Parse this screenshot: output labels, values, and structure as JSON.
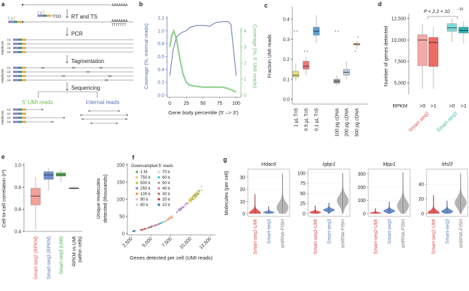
{
  "panel_labels": {
    "a": "a",
    "b": "b",
    "c": "c",
    "d": "d",
    "e": "e",
    "f": "f",
    "g": "g"
  },
  "schematic": {
    "polyA": "AAAAAAA",
    "polyT": "TTTTTTT",
    "tso_parts": [
      "Tn5",
      "Nxt",
      "UMI"
    ],
    "tso_label": "TSO",
    "steps": [
      "RT and TS",
      "PCR",
      "Tagmentation",
      "Sequencing"
    ],
    "amplicons_label": "Amplicons",
    "amplicon_ids": [
      "A1",
      "A2",
      "A3",
      "A4"
    ],
    "umi_reads": "5′ UMI reads",
    "internal_reads": "Internal reads",
    "colors": {
      "tn5": "#8b7bb8",
      "nxt": "#2a8f8f",
      "umi": "#e0a640",
      "umi_text": "#6cbf4c",
      "internal_text": "#5b6fb5"
    }
  },
  "chart_data": [
    {
      "panel": "b",
      "type": "line",
      "xlabel": "Gene body percentile (5′ –> 3′)",
      "ylabel": "Coverage (%, internal reads)",
      "ylabel_right": "Coverage (%, 5′ UMI reads)",
      "xlim": [
        0,
        100
      ],
      "ylim": [
        0,
        1.2
      ],
      "ylim_right": [
        0,
        4
      ],
      "xticks": [
        "0",
        "25",
        "50",
        "75",
        "100"
      ],
      "yticks": [
        "0.0",
        "0.2",
        "0.4",
        "0.6",
        "0.8",
        "1.0",
        "1.2"
      ],
      "yticks_right": [
        "0",
        "1",
        "2",
        "3",
        "4"
      ],
      "series": [
        {
          "axis": "left",
          "color": "#5b6fb5",
          "x": [
            0,
            5,
            10,
            15,
            20,
            25,
            30,
            40,
            50,
            60,
            70,
            80,
            88,
            92,
            96,
            100
          ],
          "y": [
            0.3,
            0.7,
            0.9,
            0.95,
            0.98,
            1.0,
            1.05,
            1.08,
            1.08,
            1.07,
            1.13,
            1.14,
            1.14,
            1.1,
            0.7,
            0.3
          ]
        },
        {
          "axis": "right",
          "color": "#6cbf6c",
          "x": [
            0,
            3,
            6,
            10,
            15,
            20,
            25,
            30,
            40,
            50,
            60,
            70,
            80,
            90,
            100
          ],
          "y": [
            3.0,
            3.7,
            4.0,
            3.5,
            2.3,
            1.3,
            0.8,
            0.62,
            0.55,
            0.5,
            0.5,
            0.5,
            0.5,
            0.38,
            0.2
          ]
        }
      ]
    },
    {
      "panel": "c",
      "type": "box",
      "ylabel": "Fraction UMI reads",
      "ylim": [
        0,
        0.44
      ],
      "yticks": [
        "0.0",
        "0.1",
        "0.2",
        "0.3",
        "0.4"
      ],
      "categories": [
        "1 µL Tn5",
        "0.5 µL Tn5",
        "0.1 µL Tn5",
        "100 pg cDNA",
        "200 pg cDNA",
        "500 pg cDNA"
      ],
      "boxes": [
        {
          "q1": 0.11,
          "median": 0.12,
          "q3": 0.14,
          "low": 0.09,
          "high": 0.18,
          "outliers": [
            0.34,
            0.34
          ],
          "color": "#e6e27a"
        },
        {
          "q1": 0.15,
          "median": 0.165,
          "q3": 0.19,
          "low": 0.12,
          "high": 0.21,
          "outliers": [
            0.24,
            0.24
          ],
          "color": "#e8787a"
        },
        {
          "q1": 0.32,
          "median": 0.34,
          "q3": 0.36,
          "low": 0.28,
          "high": 0.42,
          "outliers": [],
          "color": "#5aa0d0"
        },
        {
          "q1": 0.08,
          "median": 0.09,
          "q3": 0.1,
          "low": 0.07,
          "high": 0.12,
          "outliers": [
            0.34,
            0.34
          ],
          "color": "#9a9a9a"
        },
        {
          "q1": 0.12,
          "median": 0.135,
          "q3": 0.15,
          "low": 0.1,
          "high": 0.19,
          "outliers": [],
          "color": "#b8cce8"
        },
        {
          "q1": 0.27,
          "median": 0.275,
          "q3": 0.28,
          "low": 0.25,
          "high": 0.29,
          "outliers": [
            0.24,
            0.31
          ],
          "color": "#f0c890"
        }
      ]
    },
    {
      "panel": "d",
      "type": "box",
      "ylabel": "Number of genes detected",
      "ylim": [
        4000,
        12800
      ],
      "yticks": [
        "5,000",
        "7,500",
        "10,000",
        "12,500"
      ],
      "row_label": "RPKM",
      "categories": [
        ">0",
        ">1",
        ">0",
        ">1"
      ],
      "groups": [
        {
          "label": "Smart-seq2",
          "color": "#e05050"
        },
        {
          "label": "Smart-seq3",
          "color": "#3cb8a0"
        }
      ],
      "annotation": "P < 2.2 × 10",
      "annotation_exp": "−16",
      "boxes": [
        {
          "q1": 7000,
          "median": 10000,
          "q3": 10600,
          "low": 4300,
          "high": 11900,
          "color": "#f5a8a8"
        },
        {
          "q1": 6900,
          "median": 9700,
          "q3": 10300,
          "low": 4300,
          "high": 11500,
          "color": "#ee6a62"
        },
        {
          "q1": 11000,
          "median": 11400,
          "q3": 11900,
          "low": 9800,
          "high": 12500,
          "color": "#7edcdc"
        },
        {
          "q1": 10800,
          "median": 11100,
          "q3": 11500,
          "low": 9600,
          "high": 12200,
          "color": "#22b4b4"
        }
      ]
    },
    {
      "panel": "e",
      "type": "box",
      "ylabel": "Cell-to-cell correlation (r²)",
      "ylim": [
        0.4,
        1.0
      ],
      "yticks": [
        "0.4",
        "0.6",
        "0.8",
        "1.0"
      ],
      "categories": [
        "Smart-seq2 (RPKM)",
        "Smart-seq3 (RPKM)",
        "Smart-seq3 (UMI)",
        "RPKM vs UMI"
      ],
      "category_sub": [
        "",
        "",
        "",
        "(within cells)"
      ],
      "label_colors": [
        "#e05050",
        "#5b6fb5",
        "#4cae4c",
        "#222222"
      ],
      "boxes": [
        {
          "q1": 0.64,
          "median": 0.72,
          "q3": 0.79,
          "low": 0.42,
          "high": 0.89,
          "color": "#f5a09a"
        },
        {
          "q1": 0.87,
          "median": 0.91,
          "q3": 0.94,
          "low": 0.77,
          "high": 0.97,
          "color": "#6f8fcb"
        },
        {
          "q1": 0.9,
          "median": 0.91,
          "q3": 0.93,
          "low": 0.85,
          "high": 0.96,
          "color": "#52b552"
        },
        {
          "q1": 0.785,
          "median": 0.79,
          "q3": 0.795,
          "low": 0.77,
          "high": 0.81,
          "color": "#999999"
        }
      ]
    },
    {
      "panel": "f",
      "type": "scatter",
      "xlabel": "Genes detected per cell (UMI reads)",
      "ylabel": [
        "Unique molecules",
        "detected (thousands)"
      ],
      "xlim": [
        2000,
        13500
      ],
      "ylim": [
        0,
        205
      ],
      "xticks": [
        "2,500",
        "5,000",
        "7,500",
        "10,000",
        "12,500"
      ],
      "yticks": [
        "0",
        "50",
        "100",
        "150",
        "200"
      ],
      "legend_title": "Downsampled 5′ reads",
      "legend_position": "top-left",
      "series": [
        {
          "name": "1 M",
          "color": "#6aaa5a",
          "cx": 10800,
          "cy": 115
        },
        {
          "name": "750 k",
          "color": "#f5c07a",
          "cx": 10300,
          "cy": 105
        },
        {
          "name": "500 k",
          "color": "#bcbc3a",
          "cx": 10600,
          "cy": 110
        },
        {
          "name": "250 k",
          "color": "#9a6ad0",
          "cx": 8900,
          "cy": 75
        },
        {
          "name": "100 k",
          "color": "#f58a30",
          "cx": 7400,
          "cy": 45
        },
        {
          "name": "90 k",
          "color": "#f5b0c0",
          "cx": 7100,
          "cy": 40
        },
        {
          "name": "80 k",
          "color": "#b8dcb0",
          "cx": 6800,
          "cy": 36
        },
        {
          "name": "70 k",
          "color": "#c8d8e0",
          "cx": 6500,
          "cy": 33
        },
        {
          "name": "60 k",
          "color": "#40c0c8",
          "cx": 6100,
          "cy": 29
        },
        {
          "name": "50 k",
          "color": "#a0a0a0",
          "cx": 5700,
          "cy": 25
        },
        {
          "name": "40 k",
          "color": "#e070c0",
          "cx": 5300,
          "cy": 22
        },
        {
          "name": "30 k",
          "color": "#a07070",
          "cx": 4800,
          "cy": 18
        },
        {
          "name": "20 k",
          "color": "#c03030",
          "cx": 4000,
          "cy": 12
        },
        {
          "name": "10 k",
          "color": "#3070b0",
          "cx": 2800,
          "cy": 7
        }
      ]
    },
    {
      "panel": "g",
      "type": "violin",
      "ylabel": "Molecules (per cell)",
      "categories": [
        "Smart-seq2-UMI",
        "Smart-seq3",
        "smRNA-FISH"
      ],
      "colors": [
        "#d94a4a",
        "#5b7fc0",
        "#a8a8a8"
      ],
      "genes": [
        {
          "name": "Hdac6",
          "ylim": [
            0,
            35
          ],
          "yticks": [
            "0",
            "10",
            "20",
            "30"
          ],
          "violins": [
            {
              "max": 16,
              "median": 0.5
            },
            {
              "max": 6,
              "median": 1
            },
            {
              "max": 33,
              "median": 5
            }
          ]
        },
        {
          "name": "Igbp1",
          "ylim": [
            0,
            105
          ],
          "yticks": [
            "0",
            "25",
            "50",
            "75",
            "100"
          ],
          "violins": [
            {
              "max": 20,
              "median": 3
            },
            {
              "max": 27,
              "median": 9
            },
            {
              "max": 100,
              "median": 32
            }
          ]
        },
        {
          "name": "Mpp1",
          "ylim": [
            0,
            320
          ],
          "yticks": [
            "0",
            "100",
            "200",
            "300"
          ],
          "violins": [
            {
              "max": 40,
              "median": 5
            },
            {
              "max": 90,
              "median": 20
            },
            {
              "max": 310,
              "median": 60
            }
          ]
        },
        {
          "name": "Msl3",
          "ylim": [
            0,
            58
          ],
          "yticks": [
            "0",
            "20",
            "40"
          ],
          "violins": [
            {
              "max": 25,
              "median": 1
            },
            {
              "max": 18,
              "median": 3
            },
            {
              "max": 55,
              "median": 15
            }
          ]
        }
      ]
    }
  ]
}
